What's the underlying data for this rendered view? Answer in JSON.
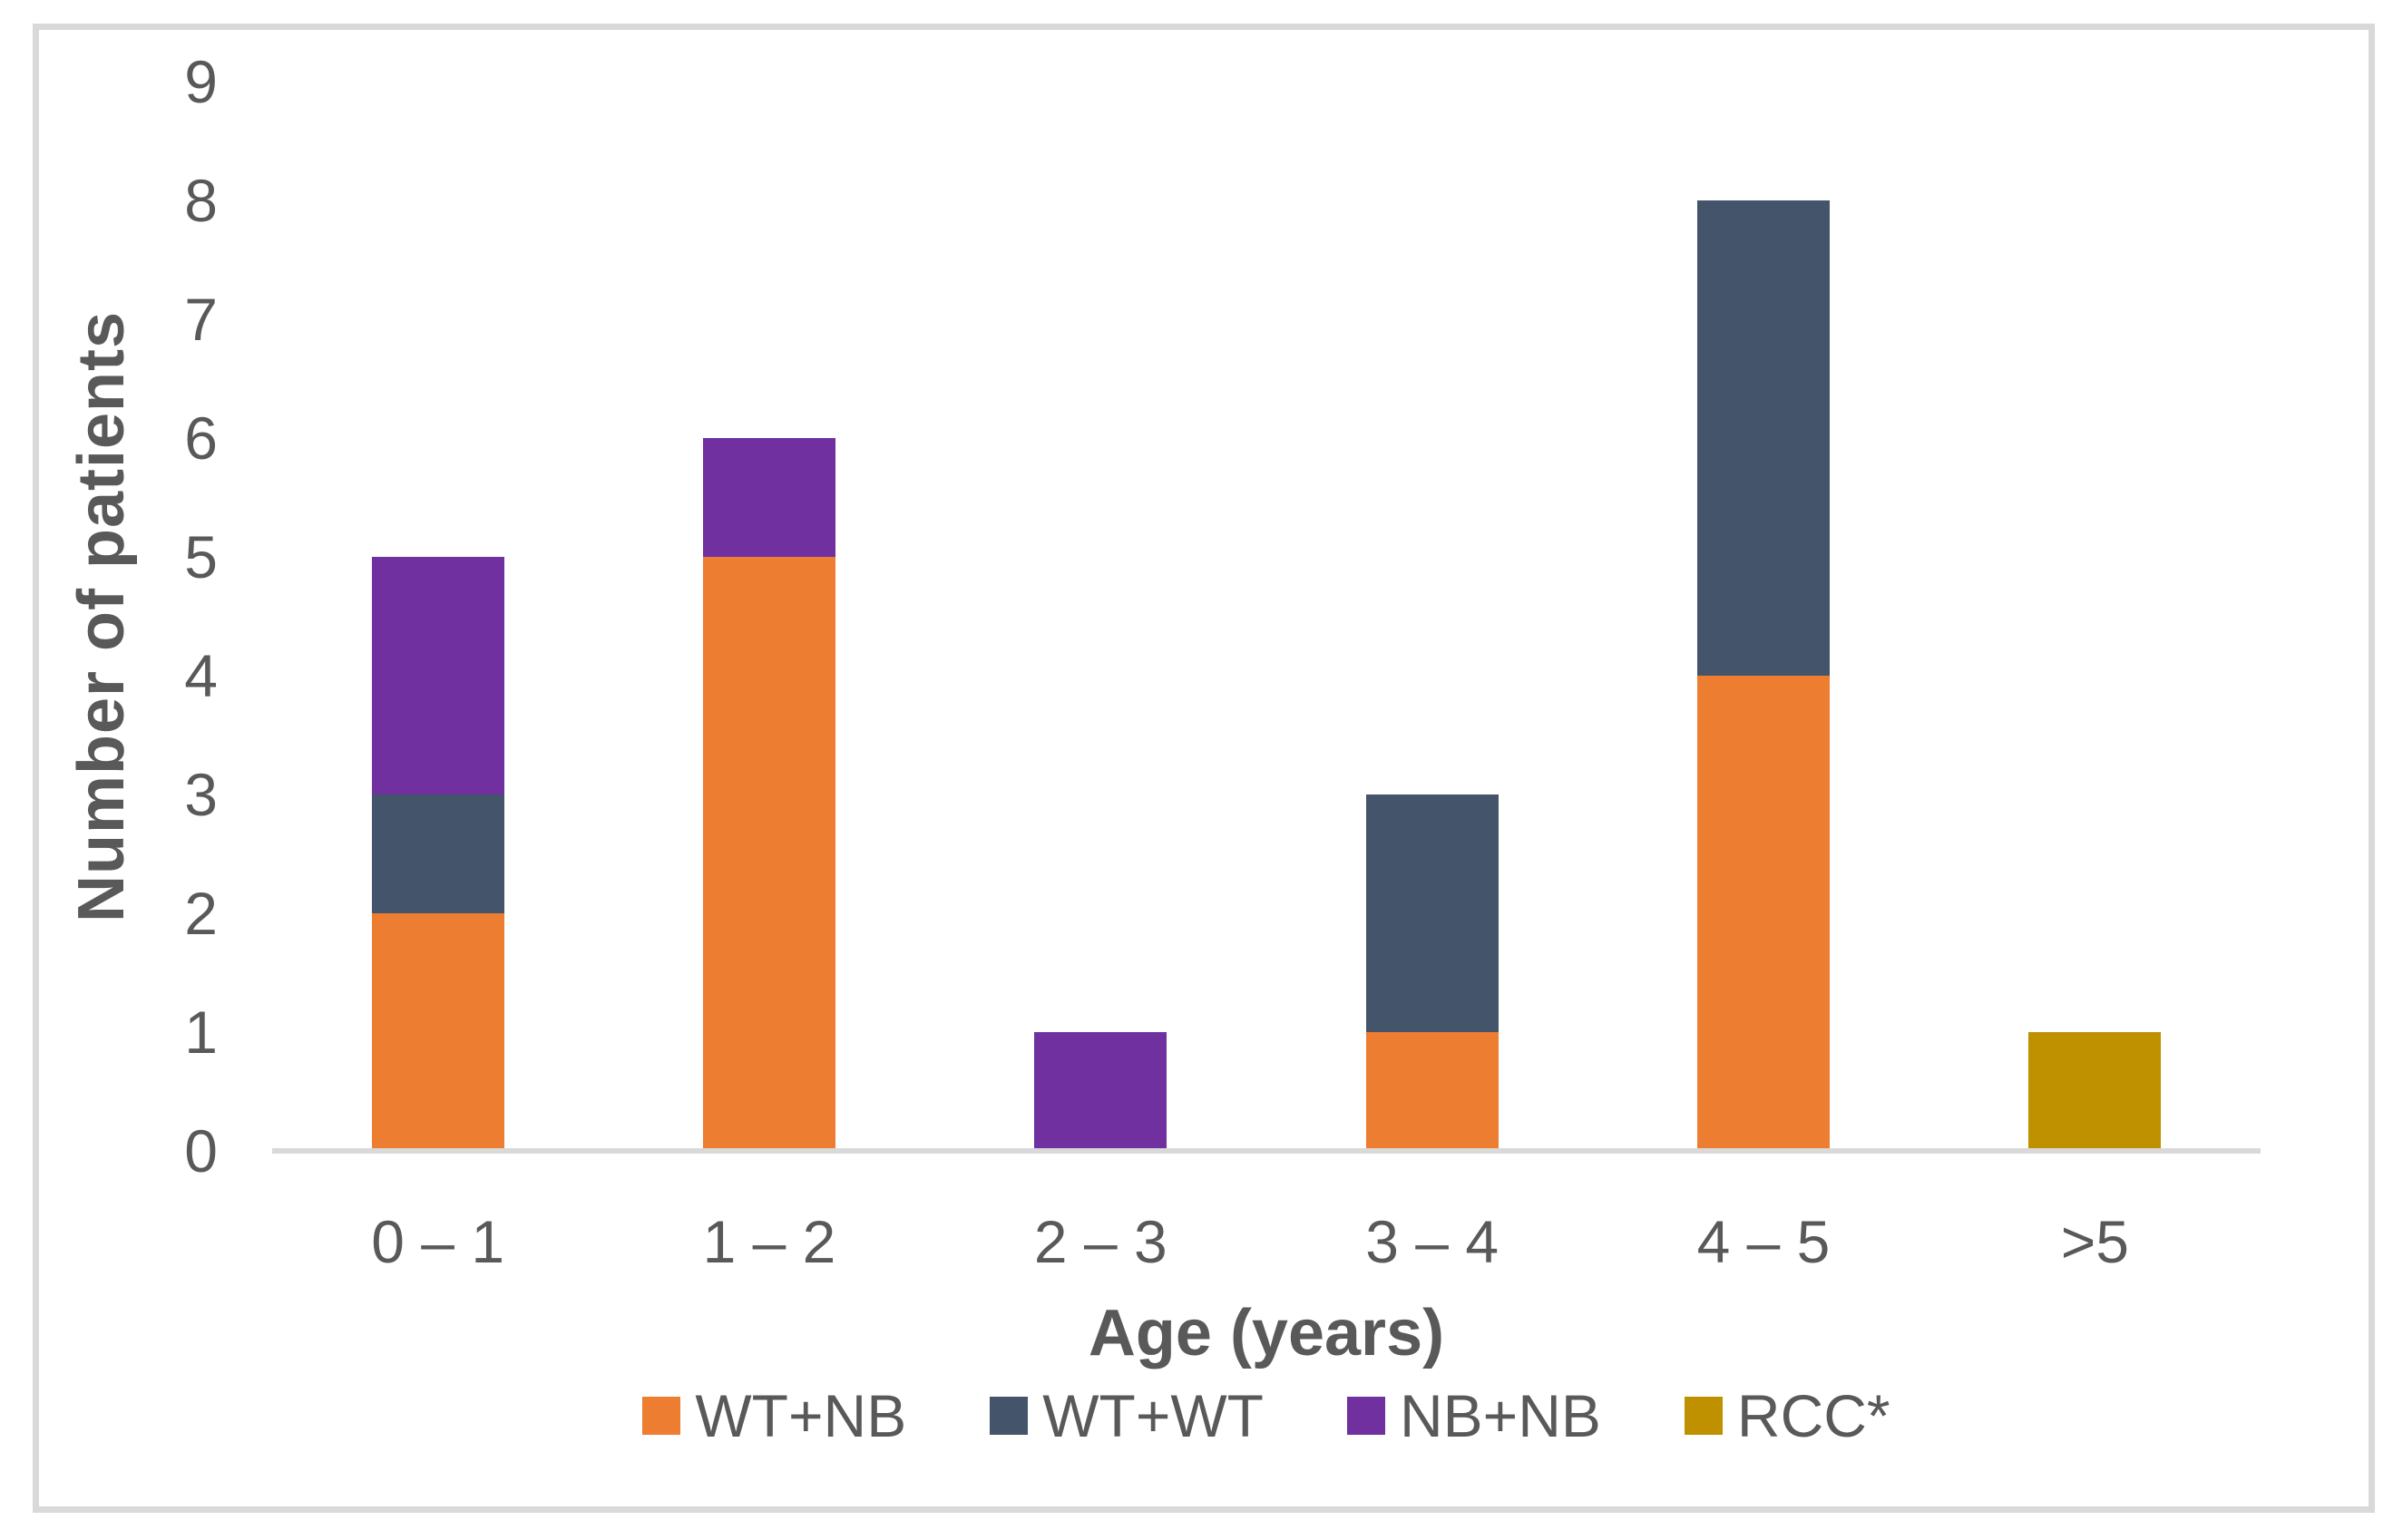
{
  "chart_data": {
    "type": "bar",
    "stacked": true,
    "title": "",
    "xlabel": "Age (years)",
    "ylabel": "Number of patients",
    "categories": [
      "0 – 1",
      "1 – 2",
      "2 – 3",
      "3 – 4",
      "4 – 5",
      ">5"
    ],
    "series": [
      {
        "name": "WT+NB",
        "color": "#ED7D31",
        "values": [
          2,
          5,
          0,
          1,
          4,
          0
        ]
      },
      {
        "name": "WT+WT",
        "color": "#44546A",
        "values": [
          1,
          0,
          0,
          2,
          4,
          0
        ]
      },
      {
        "name": "NB+NB",
        "color": "#7030A0",
        "values": [
          2,
          1,
          1,
          0,
          0,
          0
        ]
      },
      {
        "name": "RCC*",
        "color": "#BF9000",
        "values": [
          0,
          0,
          0,
          0,
          0,
          1
        ]
      }
    ],
    "totals": [
      5,
      6,
      1,
      3,
      8,
      1
    ],
    "ylim": [
      0,
      9
    ],
    "yticks": [
      0,
      1,
      2,
      3,
      4,
      5,
      6,
      7,
      8,
      9
    ],
    "grid": false,
    "legend_position": "bottom",
    "axis_line_color": "#D9D9D9",
    "frame_border_color": "#D9D9D9",
    "text_color": "#595959",
    "background_color": "#FFFFFF"
  }
}
